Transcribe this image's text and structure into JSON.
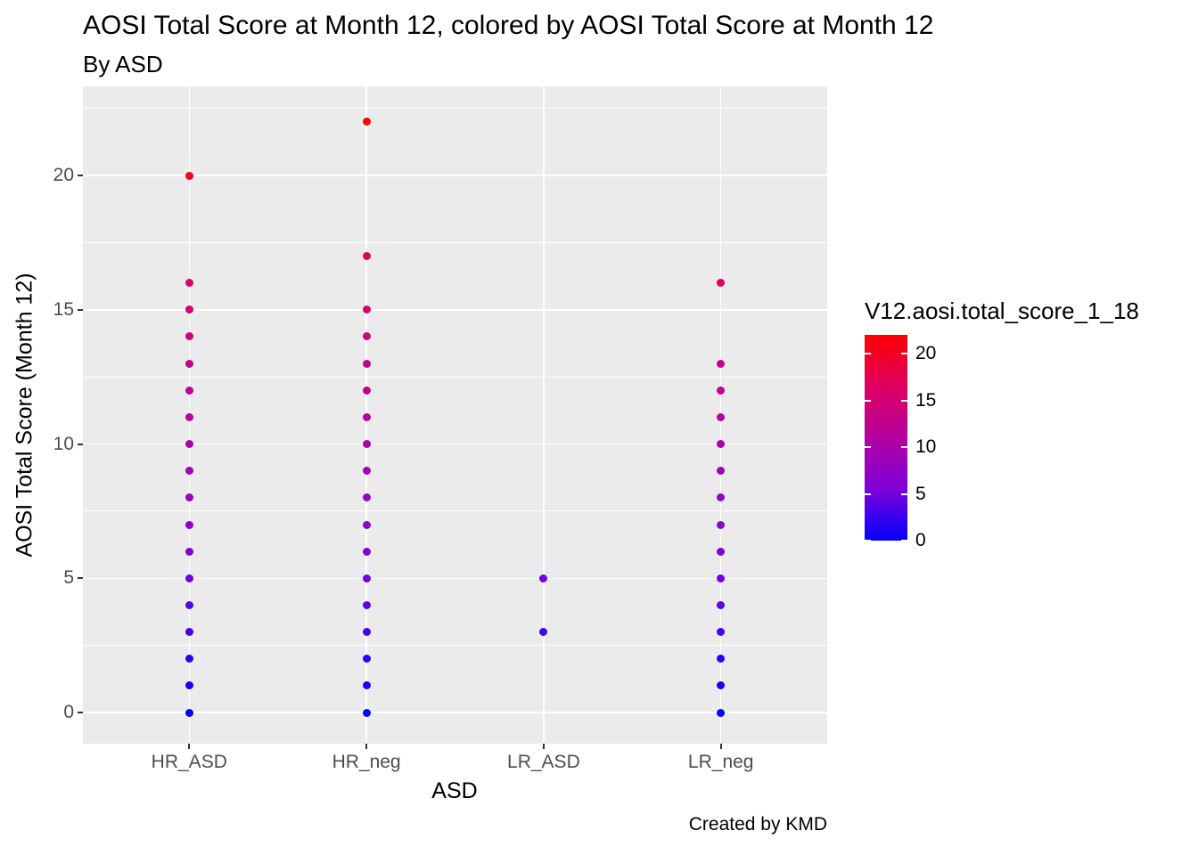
{
  "chart_data": {
    "type": "scatter",
    "title": "AOSI Total Score at Month 12, colored by AOSI Total Score at Month 12",
    "subtitle": "By ASD",
    "caption": "Created by KMD",
    "xlabel": "ASD",
    "ylabel": "AOSI Total Score (Month 12)",
    "categories": [
      "HR_ASD",
      "HR_neg",
      "LR_ASD",
      "LR_neg"
    ],
    "series": [
      {
        "name": "HR_ASD",
        "values": [
          0,
          1,
          2,
          3,
          4,
          5,
          6,
          7,
          8,
          9,
          10,
          11,
          12,
          13,
          14,
          15,
          16,
          20
        ]
      },
      {
        "name": "HR_neg",
        "values": [
          0,
          1,
          2,
          3,
          4,
          5,
          6,
          7,
          8,
          9,
          10,
          11,
          12,
          13,
          14,
          15,
          17,
          22
        ]
      },
      {
        "name": "LR_ASD",
        "values": [
          3,
          5
        ]
      },
      {
        "name": "LR_neg",
        "values": [
          0,
          1,
          2,
          3,
          4,
          5,
          6,
          7,
          8,
          9,
          10,
          11,
          12,
          13,
          16
        ]
      }
    ],
    "y_ticks": [
      20,
      15,
      10,
      5,
      0
    ],
    "y_minor_ticks": [
      22.5,
      17.5,
      12.5,
      7.5,
      2.5
    ],
    "ylim": [
      -1.16,
      23.32
    ],
    "grid": true,
    "color_domain": [
      0,
      22
    ],
    "legend": {
      "title": "V12.aosi.total_score_1_18",
      "position": "right",
      "ticks": [
        20,
        15,
        10,
        5,
        0
      ],
      "gradient_stops": [
        [
          "0",
          "#0000FF"
        ],
        [
          "0.25",
          "#7E00D8"
        ],
        [
          "0.5",
          "#B400A0"
        ],
        [
          "0.75",
          "#DE0060"
        ],
        [
          "1",
          "#FF0000"
        ]
      ]
    },
    "colors": {
      "panel_bg": "#EBEBEB",
      "grid": "#FFFFFF",
      "tick_label": "#4D4D4D",
      "low": "#0000FF",
      "high": "#FF0000"
    }
  }
}
